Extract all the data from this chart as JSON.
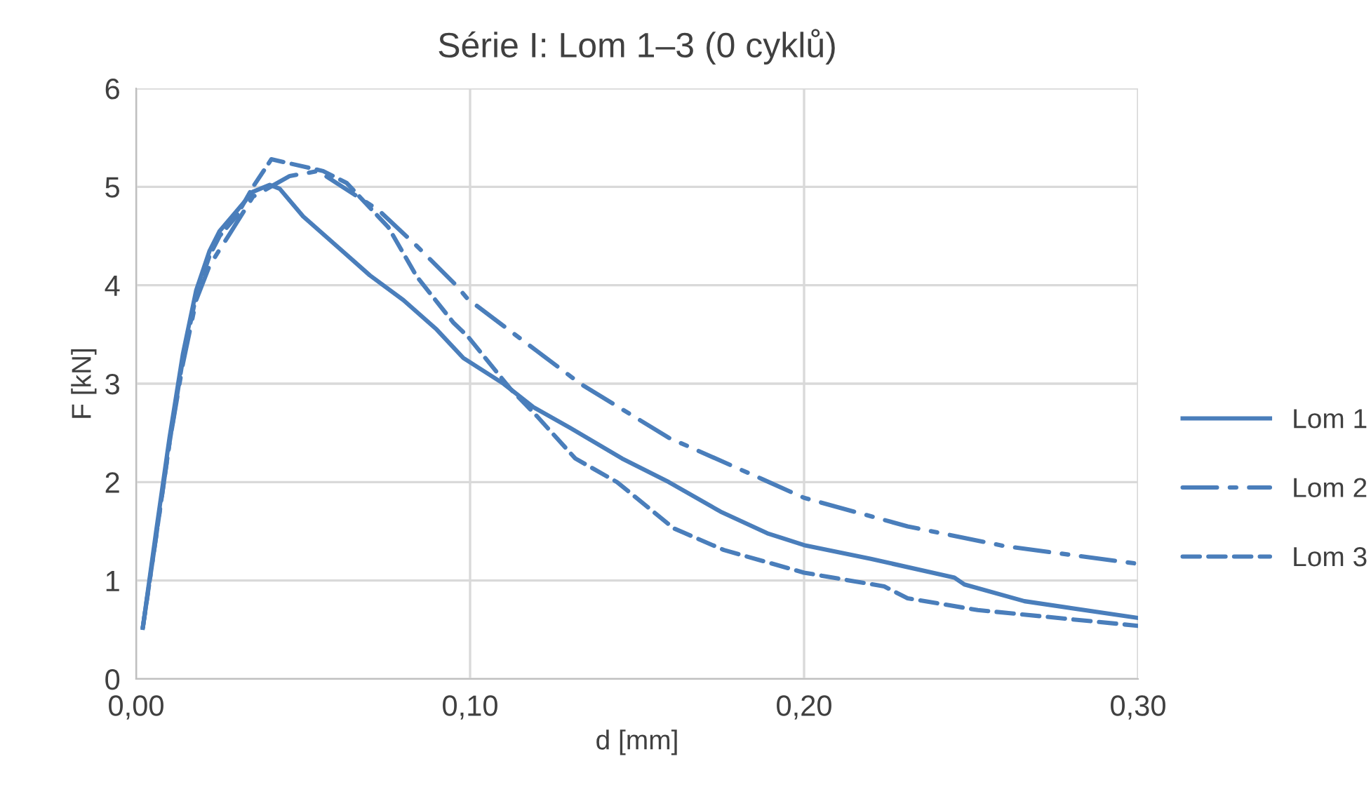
{
  "chart_data": {
    "type": "line",
    "title": "Série I: Lom 1–3 (0 cyklů)",
    "xlabel": "d [mm]",
    "ylabel": "F [kN]",
    "xlim": [
      0,
      0.3
    ],
    "ylim": [
      0,
      6
    ],
    "xticks": [
      {
        "value": 0,
        "label": "0,00"
      },
      {
        "value": 0.1,
        "label": "0,10"
      },
      {
        "value": 0.2,
        "label": "0,20"
      },
      {
        "value": 0.3,
        "label": "0,30"
      }
    ],
    "yticks": [
      0,
      1,
      2,
      3,
      4,
      5,
      6
    ],
    "grid": true,
    "legend": "right",
    "marker": "none",
    "series": [
      {
        "name": "Lom 1",
        "color": "#4a7ebb",
        "line_style": "solid",
        "x": [
          0.002,
          0.006,
          0.01,
          0.014,
          0.018,
          0.022,
          0.025,
          0.03,
          0.035,
          0.04,
          0.043,
          0.05,
          0.06,
          0.07,
          0.08,
          0.09,
          0.098,
          0.11,
          0.119,
          0.13,
          0.1455,
          0.1595,
          0.175,
          0.189,
          0.2,
          0.22,
          0.245,
          0.248,
          0.266,
          0.3
        ],
        "values": [
          0.52,
          1.5,
          2.45,
          3.3,
          3.95,
          4.35,
          4.55,
          4.75,
          4.95,
          5.02,
          4.98,
          4.7,
          4.4,
          4.1,
          3.85,
          3.55,
          3.26,
          3.0,
          2.76,
          2.55,
          2.24,
          2.0,
          1.7,
          1.48,
          1.36,
          1.22,
          1.03,
          0.96,
          0.79,
          0.62
        ]
      },
      {
        "name": "Lom 2",
        "color": "#4a7ebb",
        "line_style": "dashdot",
        "x": [
          0.002,
          0.006,
          0.01,
          0.014,
          0.018,
          0.022,
          0.0244,
          0.028,
          0.035,
          0.046,
          0.0545,
          0.0727,
          0.084,
          0.0958,
          0.0993,
          0.133,
          0.1595,
          0.1875,
          0.2,
          0.231,
          0.26,
          0.3
        ],
        "values": [
          0.52,
          1.45,
          2.4,
          3.2,
          3.85,
          4.2,
          4.33,
          4.52,
          4.9,
          5.11,
          5.16,
          4.76,
          4.4,
          4.0,
          3.86,
          3.0,
          2.45,
          2.03,
          1.84,
          1.55,
          1.35,
          1.17
        ]
      },
      {
        "name": "Lom 3",
        "color": "#4a7ebb",
        "line_style": "dashed",
        "x": [
          0.002,
          0.006,
          0.01,
          0.014,
          0.018,
          0.022,
          0.025,
          0.03,
          0.035,
          0.0405,
          0.056,
          0.063,
          0.0755,
          0.084,
          0.095,
          0.0993,
          0.112,
          0.12,
          0.1315,
          0.144,
          0.161,
          0.176,
          0.2,
          0.224,
          0.231,
          0.252,
          0.3
        ],
        "values": [
          0.52,
          1.45,
          2.4,
          3.25,
          3.9,
          4.3,
          4.5,
          4.7,
          5.0,
          5.28,
          5.16,
          5.04,
          4.59,
          4.09,
          3.62,
          3.48,
          2.95,
          2.67,
          2.24,
          2.0,
          1.53,
          1.31,
          1.08,
          0.94,
          0.82,
          0.7,
          0.54
        ]
      }
    ]
  }
}
